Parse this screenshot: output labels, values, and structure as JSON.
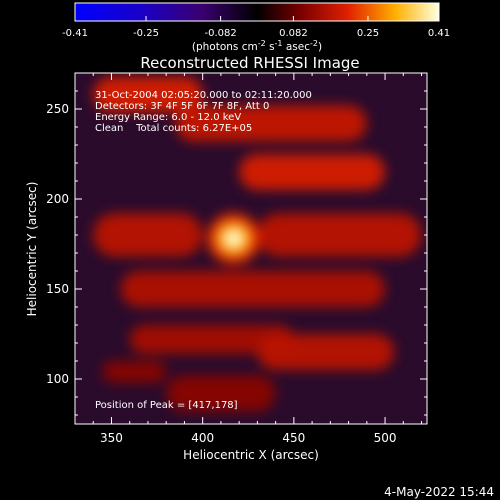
{
  "chart_data": {
    "type": "heatmap",
    "title": "Reconstructed RHESSI Image",
    "xlabel": "Heliocentric X (arcsec)",
    "ylabel": "Heliocentric Y (arcsec)",
    "xlim": [
      330,
      523
    ],
    "ylim": [
      75,
      270
    ],
    "x_ticks": [
      350,
      400,
      450,
      500
    ],
    "y_ticks": [
      100,
      150,
      200,
      250
    ],
    "colorbar": {
      "range": [
        -0.41,
        0.41
      ],
      "tick_values": [
        -0.41,
        -0.25,
        -0.082,
        0.082,
        0.25,
        0.41
      ],
      "tick_labels": [
        "-0.41",
        "-0.25",
        "-0.082",
        "0.082",
        "0.25",
        "0.41"
      ],
      "unit_label": "(photons cm^-2 s^-1 asec^-2)"
    },
    "annotations": [
      "31-Oct-2004 02:05:20.000 to 02:11:20.000",
      "Detectors: 3F 4F 5F 6F 7F 8F, Att 0",
      "Energy Range: 6.0 - 12.0 keV",
      "Clean    Total counts: 6.27E+05"
    ],
    "peak_label": "Position of Peak = [417,178]",
    "peak": {
      "x": 417,
      "y": 178,
      "value": 0.41
    },
    "background_value": 0.03,
    "bands": [
      {
        "x0": 340,
        "x1": 400,
        "y": 258,
        "half_height": 10,
        "value": 0.2
      },
      {
        "x0": 385,
        "x1": 490,
        "y": 242,
        "half_height": 10,
        "value": 0.18
      },
      {
        "x0": 420,
        "x1": 500,
        "y": 215,
        "half_height": 10,
        "value": 0.2
      },
      {
        "x0": 340,
        "x1": 400,
        "y": 180,
        "half_height": 12,
        "value": 0.17
      },
      {
        "x0": 430,
        "x1": 520,
        "y": 180,
        "half_height": 12,
        "value": 0.17
      },
      {
        "x0": 355,
        "x1": 500,
        "y": 150,
        "half_height": 10,
        "value": 0.16
      },
      {
        "x0": 360,
        "x1": 450,
        "y": 122,
        "half_height": 8,
        "value": 0.15
      },
      {
        "x0": 430,
        "x1": 505,
        "y": 115,
        "half_height": 10,
        "value": 0.17
      },
      {
        "x0": 345,
        "x1": 380,
        "y": 104,
        "half_height": 6,
        "value": 0.12
      },
      {
        "x0": 380,
        "x1": 440,
        "y": 92,
        "half_height": 10,
        "value": 0.12
      }
    ]
  },
  "footer": {
    "date": "4-May-2022 15:44"
  }
}
